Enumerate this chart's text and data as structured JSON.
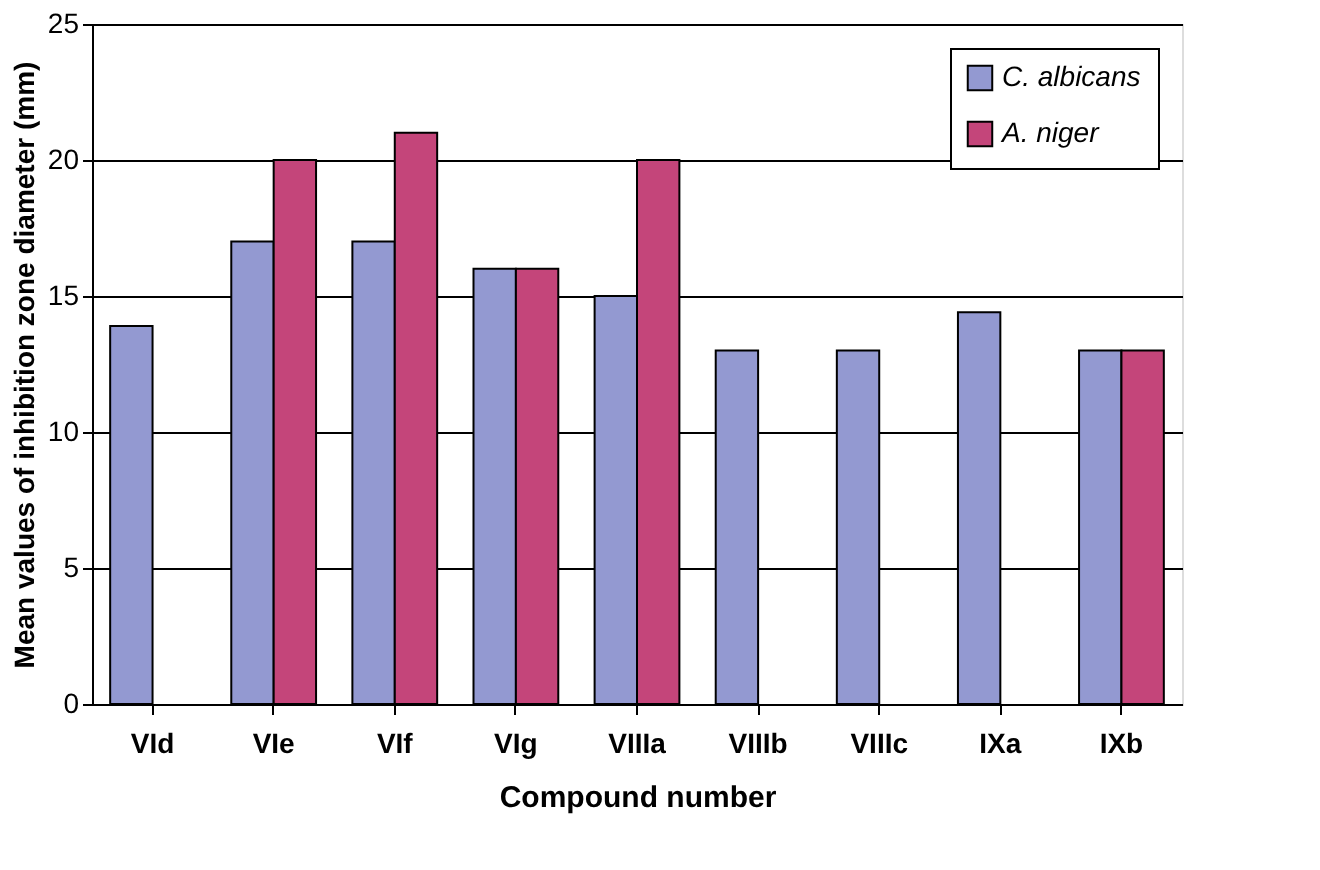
{
  "chart_data": {
    "type": "bar",
    "xlabel": "Compound number",
    "ylabel": "Mean values of inhibition zone diameter (mm)",
    "categories": [
      "VId",
      "VIe",
      "VIf",
      "VIg",
      "VIIIa",
      "VIIIb",
      "VIIIc",
      "IXa",
      "IXb"
    ],
    "series": [
      {
        "name": "C. albicans",
        "color": "#9399d1",
        "values": [
          13.9,
          17,
          17,
          16,
          15,
          13,
          13,
          14.4,
          13
        ]
      },
      {
        "name": "A. niger",
        "color": "#c4457a",
        "values": [
          null,
          20,
          21,
          16,
          20,
          null,
          null,
          null,
          13
        ]
      }
    ],
    "ylim": [
      0,
      25
    ],
    "yticks": [
      0,
      5,
      10,
      15,
      20,
      25
    ],
    "grid": "y",
    "legend": "top right"
  }
}
